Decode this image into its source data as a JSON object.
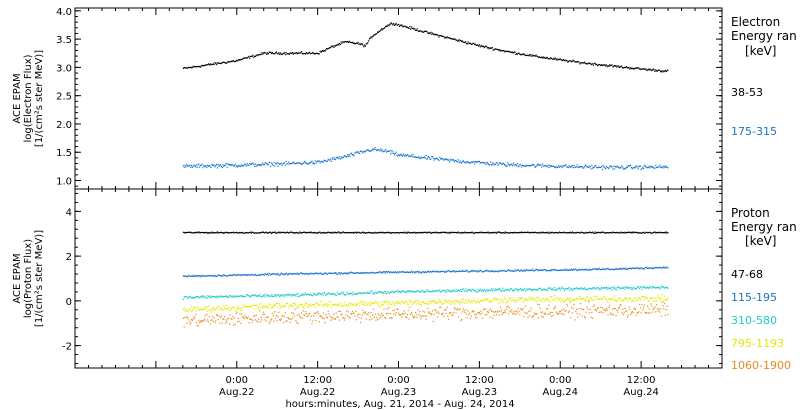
{
  "chart_data": {
    "type": "scatter",
    "xaxis": {
      "title": "hours:minutes, Aug. 21, 2014 - Aug. 24, 2014",
      "range_hours": [
        0,
        96
      ],
      "ticks": [
        {
          "hours": 24,
          "time": "0:00",
          "date": "Aug.22"
        },
        {
          "hours": 36,
          "time": "12:00",
          "date": "Aug.22"
        },
        {
          "hours": 48,
          "time": "0:00",
          "date": "Aug.23"
        },
        {
          "hours": 60,
          "time": "12:00",
          "date": "Aug.23"
        },
        {
          "hours": 72,
          "time": "0:00",
          "date": "Aug.24"
        },
        {
          "hours": 84,
          "time": "12:00",
          "date": "Aug.24"
        }
      ],
      "data_end_hours": 88
    },
    "panels": [
      {
        "id": "electron",
        "ylabel": [
          "ACE EPAM",
          "log(Electron Flux)",
          "[1/(cm²s ster MeV)]"
        ],
        "ylim": [
          0.85,
          4.05
        ],
        "yticks": [
          1.0,
          1.5,
          2.0,
          2.5,
          3.0,
          3.5,
          4.0
        ],
        "ytick_labels": [
          "1.0",
          "1.5",
          "2.0",
          "2.5",
          "3.0",
          "3.5",
          "4.0"
        ],
        "legend_title": [
          "Electron",
          "Energy ran",
          "[keV]"
        ],
        "series": [
          {
            "name": "38-53",
            "color": "#000000",
            "noise": 0.03,
            "points": [
              [
                16,
                2.98
              ],
              [
                20,
                3.05
              ],
              [
                24,
                3.12
              ],
              [
                28,
                3.25
              ],
              [
                32,
                3.25
              ],
              [
                36,
                3.25
              ],
              [
                38,
                3.36
              ],
              [
                40,
                3.45
              ],
              [
                42,
                3.42
              ],
              [
                43,
                3.38
              ],
              [
                44,
                3.55
              ],
              [
                46,
                3.72
              ],
              [
                47,
                3.78
              ],
              [
                48,
                3.75
              ],
              [
                52,
                3.62
              ],
              [
                56,
                3.5
              ],
              [
                60,
                3.38
              ],
              [
                64,
                3.28
              ],
              [
                68,
                3.2
              ],
              [
                72,
                3.13
              ],
              [
                76,
                3.07
              ],
              [
                80,
                3.02
              ],
              [
                84,
                2.97
              ],
              [
                88,
                2.93
              ]
            ]
          },
          {
            "name": "175-315",
            "color": "#1874cd",
            "noise": 0.05,
            "points": [
              [
                16,
                1.25
              ],
              [
                24,
                1.27
              ],
              [
                32,
                1.3
              ],
              [
                36,
                1.32
              ],
              [
                40,
                1.42
              ],
              [
                44,
                1.55
              ],
              [
                46,
                1.52
              ],
              [
                48,
                1.45
              ],
              [
                56,
                1.35
              ],
              [
                64,
                1.28
              ],
              [
                72,
                1.25
              ],
              [
                80,
                1.23
              ],
              [
                88,
                1.24
              ]
            ]
          }
        ]
      },
      {
        "id": "proton",
        "ylabel": [
          "ACE EPAM",
          "log(Proton Flux)",
          "[1/(cm²s ster MeV)]"
        ],
        "ylim": [
          -3.0,
          5.0
        ],
        "yticks": [
          -2,
          0,
          2,
          4
        ],
        "ytick_labels": [
          "-2",
          "0",
          "2",
          "4"
        ],
        "legend_title": [
          "Proton",
          "Energy ran",
          "[keV]"
        ],
        "series": [
          {
            "name": "47-68",
            "color": "#000000",
            "noise": 0.04,
            "points": [
              [
                16,
                3.05
              ],
              [
                88,
                3.05
              ]
            ]
          },
          {
            "name": "115-195",
            "color": "#1874cd",
            "noise": 0.06,
            "points": [
              [
                16,
                1.1
              ],
              [
                32,
                1.2
              ],
              [
                48,
                1.28
              ],
              [
                64,
                1.35
              ],
              [
                80,
                1.42
              ],
              [
                88,
                1.5
              ]
            ]
          },
          {
            "name": "310-580",
            "color": "#20c8c8",
            "noise": 0.1,
            "points": [
              [
                16,
                0.15
              ],
              [
                32,
                0.25
              ],
              [
                48,
                0.4
              ],
              [
                64,
                0.5
              ],
              [
                88,
                0.6
              ]
            ]
          },
          {
            "name": "795-1193",
            "color": "#e6e600",
            "noise": 0.2,
            "points": [
              [
                16,
                -0.4
              ],
              [
                32,
                -0.2
              ],
              [
                48,
                -0.1
              ],
              [
                64,
                0.05
              ],
              [
                88,
                0.1
              ]
            ]
          },
          {
            "name": "1060-1900",
            "color": "#e68a1a",
            "noise": 0.45,
            "points": [
              [
                16,
                -0.9
              ],
              [
                32,
                -0.7
              ],
              [
                48,
                -0.6
              ],
              [
                64,
                -0.5
              ],
              [
                88,
                -0.4
              ]
            ]
          }
        ]
      }
    ]
  }
}
